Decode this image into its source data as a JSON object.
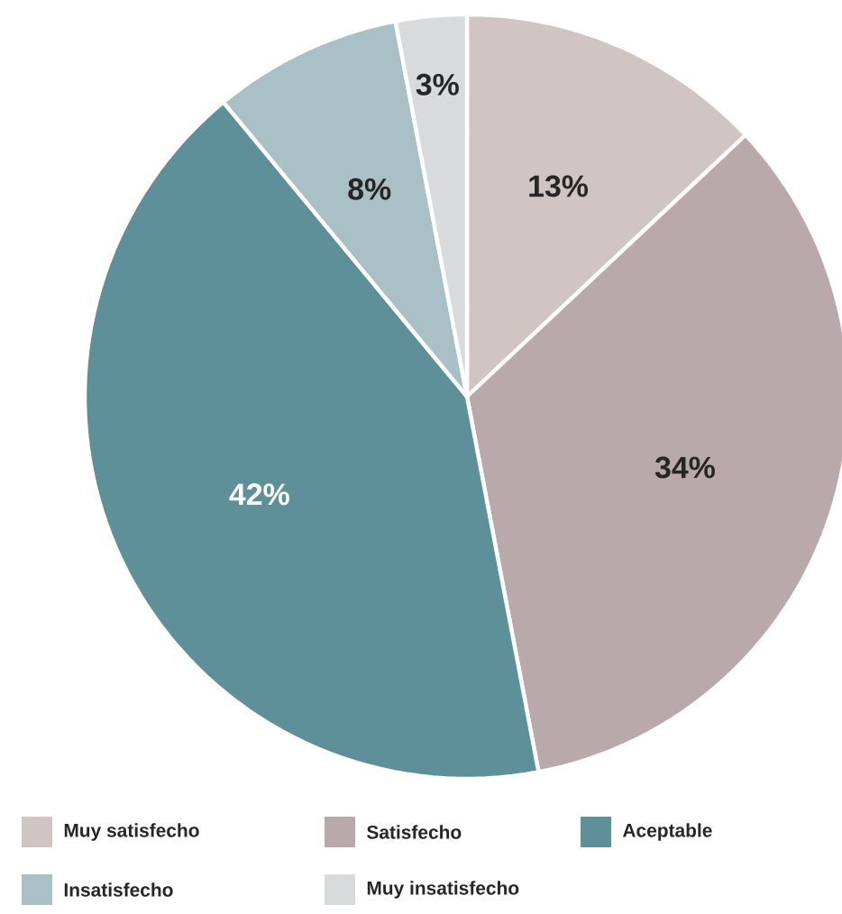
{
  "chart_data": {
    "type": "pie",
    "categories": [
      "Muy satisfecho",
      "Satisfecho",
      "Aceptable",
      "Insatisfecho",
      "Muy insatisfecho"
    ],
    "values": [
      13,
      34,
      42,
      8,
      3
    ],
    "value_labels": [
      "13%",
      "34%",
      "42%",
      "8%",
      "3%"
    ],
    "colors": [
      "#d1c5c4",
      "#b9a9ab",
      "#5e9099",
      "#a8c0c6",
      "#d9dadc"
    ],
    "legend": "bottom"
  }
}
